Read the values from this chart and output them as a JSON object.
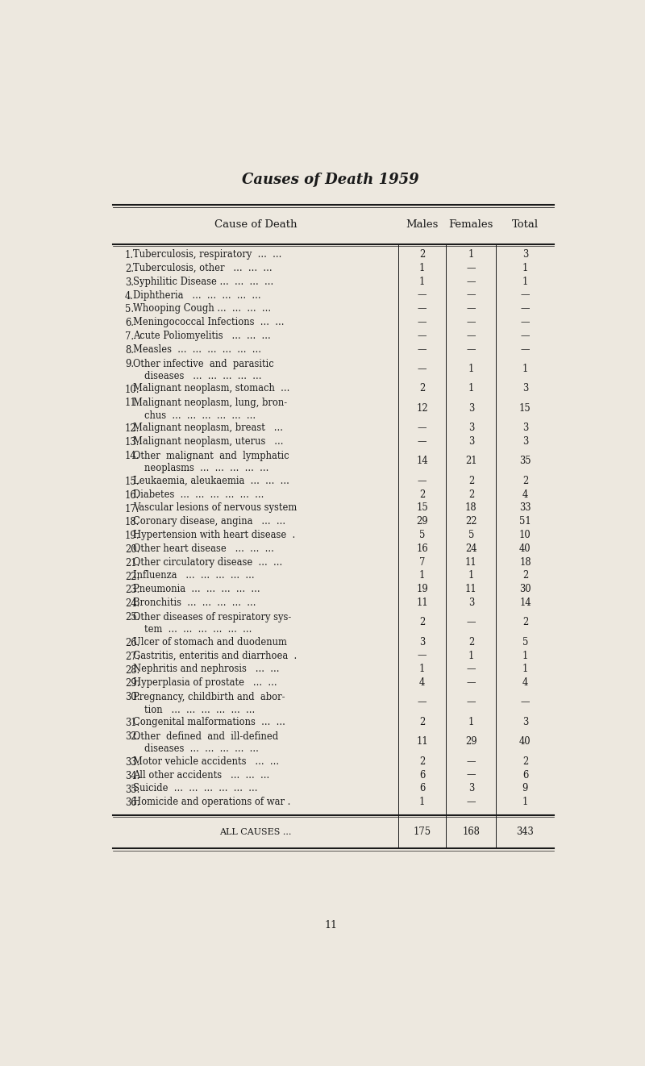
{
  "title": "Causes of Death 1959",
  "bg_color": "#EDE8DF",
  "text_color": "#1a1a1a",
  "col_headers": [
    "Cause of Death",
    "Males",
    "Females",
    "Total"
  ],
  "rows": [
    {
      "num": "1.",
      "line1": "Tuberculosis, respiratory  ...  ...",
      "line2": "",
      "males": "2",
      "females": "1",
      "total": "3"
    },
    {
      "num": "2.",
      "line1": "Tuberculosis, other   ...  ...  ...",
      "line2": "",
      "males": "1",
      "females": "—",
      "total": "1"
    },
    {
      "num": "3.",
      "line1": "Syphilitic Disease ...  ...  ...  ...",
      "line2": "",
      "males": "1",
      "females": "—",
      "total": "1"
    },
    {
      "num": "4.",
      "line1": "Diphtheria   ...  ...  ...  ...  ...",
      "line2": "",
      "males": "—",
      "females": "—",
      "total": "—"
    },
    {
      "num": "5.",
      "line1": "Whooping Cough ...  ...  ...  ...",
      "line2": "",
      "males": "—",
      "females": "—",
      "total": "—"
    },
    {
      "num": "6.",
      "line1": "Meningococcal Infections  ...  ...",
      "line2": "",
      "males": "—",
      "females": "—",
      "total": "—"
    },
    {
      "num": "7.",
      "line1": "Acute Poliomyelitis   ...  ...  ...",
      "line2": "",
      "males": "—",
      "females": "—",
      "total": "—"
    },
    {
      "num": "8.",
      "line1": "Measles  ...  ...  ...  ...  ...  ...",
      "line2": "",
      "males": "—",
      "females": "—",
      "total": "—"
    },
    {
      "num": "9.",
      "line1": "Other infective  and  parasitic",
      "line2": "diseases   ...  ...  ...  ...  ...",
      "males": "—",
      "females": "1",
      "total": "1"
    },
    {
      "num": "10.",
      "line1": "Malignant neoplasm, stomach  ...",
      "line2": "",
      "males": "2",
      "females": "1",
      "total": "3"
    },
    {
      "num": "11.",
      "line1": "Malignant neoplasm, lung, bron-",
      "line2": "chus  ...  ...  ...  ...  ...  ...",
      "males": "12",
      "females": "3",
      "total": "15"
    },
    {
      "num": "12.",
      "line1": "Malignant neoplasm, breast   ...",
      "line2": "",
      "males": "—",
      "females": "3",
      "total": "3"
    },
    {
      "num": "13.",
      "line1": "Malignant neoplasm, uterus   ...",
      "line2": "",
      "males": "—",
      "females": "3",
      "total": "3"
    },
    {
      "num": "14.",
      "line1": "Other  malignant  and  lymphatic",
      "line2": "neoplasms  ...  ...  ...  ...  ...",
      "males": "14",
      "females": "21",
      "total": "35"
    },
    {
      "num": "15.",
      "line1": "Leukaemia, aleukaemia  ...  ...  ...",
      "line2": "",
      "males": "—",
      "females": "2",
      "total": "2"
    },
    {
      "num": "16.",
      "line1": "Diabetes  ...  ...  ...  ...  ...  ...",
      "line2": "",
      "males": "2",
      "females": "2",
      "total": "4"
    },
    {
      "num": "17.",
      "line1": "Vascular lesions of nervous system",
      "line2": "",
      "males": "15",
      "females": "18",
      "total": "33"
    },
    {
      "num": "18.",
      "line1": "Coronary disease, angina   ...  ...",
      "line2": "",
      "males": "29",
      "females": "22",
      "total": "51"
    },
    {
      "num": "19.",
      "line1": "Hypertension with heart disease  .",
      "line2": "",
      "males": "5",
      "females": "5",
      "total": "10"
    },
    {
      "num": "20.",
      "line1": "Other heart disease   ...  ...  ...",
      "line2": "",
      "males": "16",
      "females": "24",
      "total": "40"
    },
    {
      "num": "21.",
      "line1": "Other circulatory disease  ...  ...",
      "line2": "",
      "males": "7",
      "females": "11",
      "total": "18"
    },
    {
      "num": "22.",
      "line1": "Influenza   ...  ...  ...  ...  ...",
      "line2": "",
      "males": "1",
      "females": "1",
      "total": "2"
    },
    {
      "num": "23.",
      "line1": "Pneumonia  ...  ...  ...  ...  ...",
      "line2": "",
      "males": "19",
      "females": "11",
      "total": "30"
    },
    {
      "num": "24.",
      "line1": "Bronchitis  ...  ...  ...  ...  ...",
      "line2": "",
      "males": "11",
      "females": "3",
      "total": "14"
    },
    {
      "num": "25.",
      "line1": "Other diseases of respiratory sys-",
      "line2": "tem  ...  ...  ...  ...  ...  ...",
      "males": "2",
      "females": "—",
      "total": "2"
    },
    {
      "num": "26.",
      "line1": "Ulcer of stomach and duodenum",
      "line2": "",
      "males": "3",
      "females": "2",
      "total": "5"
    },
    {
      "num": "27.",
      "line1": "Gastritis, enteritis and diarrhoea  .",
      "line2": "",
      "males": "—",
      "females": "1",
      "total": "1"
    },
    {
      "num": "28.",
      "line1": "Nephritis and nephrosis   ...  ...",
      "line2": "",
      "males": "1",
      "females": "—",
      "total": "1"
    },
    {
      "num": "29.",
      "line1": "Hyperplasia of prostate   ...  ...",
      "line2": "",
      "males": "4",
      "females": "—",
      "total": "4"
    },
    {
      "num": "30.",
      "line1": "Pregnancy, childbirth and  abor-",
      "line2": "tion   ...  ...  ...  ...  ...  ...",
      "males": "—",
      "females": "—",
      "total": "—"
    },
    {
      "num": "31.",
      "line1": "Congenital malformations  ...  ...",
      "line2": "",
      "males": "2",
      "females": "1",
      "total": "3"
    },
    {
      "num": "32.",
      "line1": "Other  defined  and  ill-defined",
      "line2": "diseases  ...  ...  ...  ...  ...",
      "males": "11",
      "females": "29",
      "total": "40"
    },
    {
      "num": "33.",
      "line1": "Motor vehicle accidents   ...  ...",
      "line2": "",
      "males": "2",
      "females": "—",
      "total": "2"
    },
    {
      "num": "34.",
      "line1": "All other accidents   ...  ...  ...",
      "line2": "",
      "males": "6",
      "females": "—",
      "total": "6"
    },
    {
      "num": "35.",
      "line1": "Suicide  ...  ...  ...  ...  ...  ...",
      "line2": "",
      "males": "6",
      "females": "3",
      "total": "9"
    },
    {
      "num": "36.",
      "line1": "Homicide and operations of war .",
      "line2": "",
      "males": "1",
      "females": "—",
      "total": "1"
    }
  ],
  "footer_label": "ALL CAUSES ...",
  "footer_males": "175",
  "footer_females": "168",
  "footer_total": "343",
  "page_number": "11"
}
